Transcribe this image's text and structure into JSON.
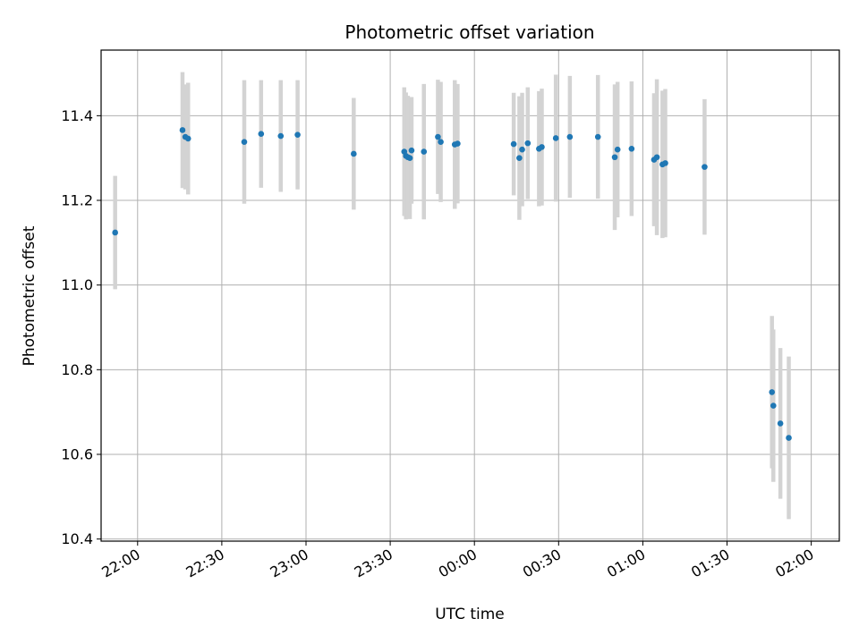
{
  "chart_data": {
    "type": "scatter",
    "title": "Photometric offset variation",
    "xlabel": "UTC time",
    "ylabel": "Photometric offset",
    "grid": true,
    "xlim": [
      "21:47",
      "02:10"
    ],
    "ylim": [
      10.395,
      11.555
    ],
    "x_ticks": [
      "22:00",
      "22:30",
      "23:00",
      "23:30",
      "00:00",
      "00:30",
      "01:00",
      "01:30",
      "02:00"
    ],
    "y_ticks": [
      "10.4",
      "10.6",
      "10.8",
      "11.0",
      "11.2",
      "11.4"
    ],
    "marker_color": "#1f77b4",
    "errorbar_color": "#d3d3d3",
    "points": [
      {
        "x": "21:52",
        "y": 11.124,
        "err": 0.134
      },
      {
        "x": "22:16",
        "y": 11.366,
        "err": 0.137
      },
      {
        "x": "22:17",
        "y": 11.35,
        "err": 0.124
      },
      {
        "x": "22:18",
        "y": 11.346,
        "err": 0.132
      },
      {
        "x": "22:38",
        "y": 11.338,
        "err": 0.146
      },
      {
        "x": "22:44",
        "y": 11.357,
        "err": 0.127
      },
      {
        "x": "22:51",
        "y": 11.352,
        "err": 0.132
      },
      {
        "x": "22:57",
        "y": 11.355,
        "err": 0.129
      },
      {
        "x": "23:17",
        "y": 11.31,
        "err": 0.132
      },
      {
        "x": "23:35",
        "y": 11.315,
        "err": 0.152
      },
      {
        "x": "23:35.6",
        "y": 11.305,
        "err": 0.15
      },
      {
        "x": "23:36.3",
        "y": 11.302,
        "err": 0.145
      },
      {
        "x": "23:37",
        "y": 11.3,
        "err": 0.144
      },
      {
        "x": "23:37.6",
        "y": 11.318,
        "err": 0.126
      },
      {
        "x": "23:42",
        "y": 11.315,
        "err": 0.16
      },
      {
        "x": "23:47",
        "y": 11.35,
        "err": 0.135
      },
      {
        "x": "23:48",
        "y": 11.338,
        "err": 0.142
      },
      {
        "x": "23:53",
        "y": 11.332,
        "err": 0.152
      },
      {
        "x": "23:54",
        "y": 11.334,
        "err": 0.141
      },
      {
        "x": "00:14",
        "y": 11.333,
        "err": 0.121
      },
      {
        "x": "00:16",
        "y": 11.3,
        "err": 0.146
      },
      {
        "x": "00:17",
        "y": 11.32,
        "err": 0.134
      },
      {
        "x": "00:19",
        "y": 11.335,
        "err": 0.132
      },
      {
        "x": "00:23",
        "y": 11.322,
        "err": 0.136
      },
      {
        "x": "00:24",
        "y": 11.326,
        "err": 0.138
      },
      {
        "x": "00:29",
        "y": 11.347,
        "err": 0.15
      },
      {
        "x": "00:34",
        "y": 11.35,
        "err": 0.144
      },
      {
        "x": "00:44",
        "y": 11.35,
        "err": 0.146
      },
      {
        "x": "00:50",
        "y": 11.302,
        "err": 0.172
      },
      {
        "x": "00:51",
        "y": 11.32,
        "err": 0.16
      },
      {
        "x": "00:56",
        "y": 11.322,
        "err": 0.159
      },
      {
        "x": "01:04",
        "y": 11.296,
        "err": 0.157
      },
      {
        "x": "01:05",
        "y": 11.302,
        "err": 0.184
      },
      {
        "x": "01:07",
        "y": 11.285,
        "err": 0.174
      },
      {
        "x": "01:08",
        "y": 11.288,
        "err": 0.175
      },
      {
        "x": "01:22",
        "y": 11.279,
        "err": 0.16
      },
      {
        "x": "01:46",
        "y": 10.747,
        "err": 0.18
      },
      {
        "x": "01:46.5",
        "y": 10.715,
        "err": 0.18
      },
      {
        "x": "01:49",
        "y": 10.673,
        "err": 0.178
      },
      {
        "x": "01:52",
        "y": 10.639,
        "err": 0.192
      }
    ]
  }
}
